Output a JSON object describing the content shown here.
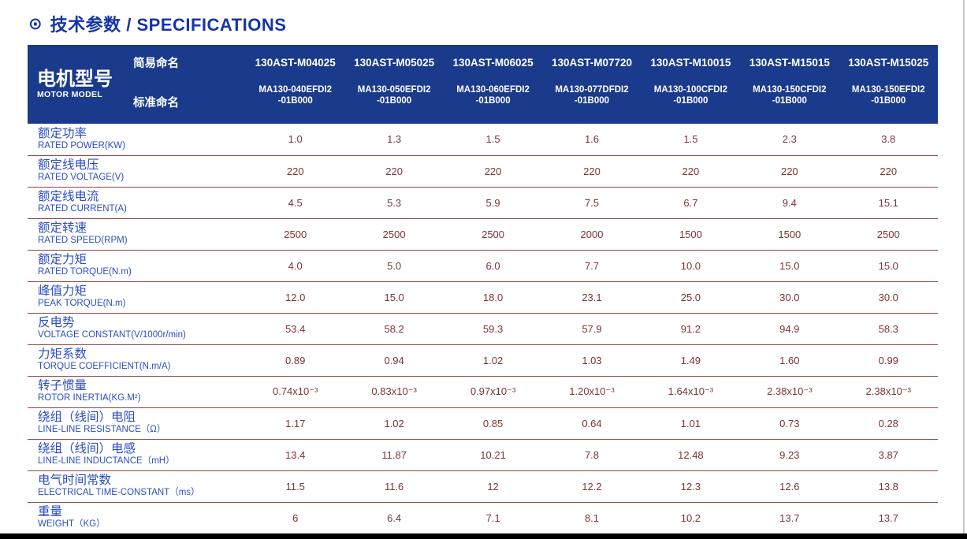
{
  "page": {
    "title_icon": "⊙",
    "title": "技术参数 / SPECIFICATIONS"
  },
  "colors": {
    "title_text": "#1634a6",
    "header_background": "#1a3a8c",
    "header_text": "#ffffff",
    "row_label_text": "#2b4ec2",
    "value_text": "#7c3434",
    "row_divider": "#8d4343",
    "bottom_bar": "#000000"
  },
  "table": {
    "header": {
      "model_label_cn": "电机型号",
      "model_label_en": "MOTOR MODEL",
      "simple_name_label": "简易命名",
      "standard_name_label": "标准命名",
      "columns": [
        {
          "simple": "130AST-M04025",
          "standard_line1": "MA130-040EFDI2",
          "standard_line2": "-01B000"
        },
        {
          "simple": "130AST-M05025",
          "standard_line1": "MA130-050EFDI2",
          "standard_line2": "-01B000"
        },
        {
          "simple": "130AST-M06025",
          "standard_line1": "MA130-060EFDI2",
          "standard_line2": "-01B000"
        },
        {
          "simple": "130AST-M07720",
          "standard_line1": "MA130-077DFDI2",
          "standard_line2": "-01B000"
        },
        {
          "simple": "130AST-M10015",
          "standard_line1": "MA130-100CFDI2",
          "standard_line2": "-01B000"
        },
        {
          "simple": "130AST-M15015",
          "standard_line1": "MA130-150CFDI2",
          "standard_line2": "-01B000"
        },
        {
          "simple": "130AST-M15025",
          "standard_line1": "MA130-150EFDI2",
          "standard_line2": "-01B000"
        }
      ]
    },
    "rows": [
      {
        "label_cn": "额定功率",
        "label_en": "RATED POWER(KW)",
        "values": [
          "1.0",
          "1.3",
          "1.5",
          "1.6",
          "1.5",
          "2.3",
          "3.8"
        ]
      },
      {
        "label_cn": "额定线电压",
        "label_en": "RATED VOLTAGE(V)",
        "values": [
          "220",
          "220",
          "220",
          "220",
          "220",
          "220",
          "220"
        ]
      },
      {
        "label_cn": "额定线电流",
        "label_en": "RATED CURRENT(A)",
        "values": [
          "4.5",
          "5.3",
          "5.9",
          "7.5",
          "6.7",
          "9.4",
          "15.1"
        ]
      },
      {
        "label_cn": "额定转速",
        "label_en": "RATED SPEED(RPM)",
        "values": [
          "2500",
          "2500",
          "2500",
          "2000",
          "1500",
          "1500",
          "2500"
        ]
      },
      {
        "label_cn": "额定力矩",
        "label_en": "RATED TORQUE(N.m)",
        "values": [
          "4.0",
          "5.0",
          "6.0",
          "7.7",
          "10.0",
          "15.0",
          "15.0"
        ]
      },
      {
        "label_cn": "峰值力矩",
        "label_en": "PEAK TORQUE(N.m)",
        "values": [
          "12.0",
          "15.0",
          "18.0",
          "23.1",
          "25.0",
          "30.0",
          "30.0"
        ]
      },
      {
        "label_cn": "反电势",
        "label_en": "VOLTAGE CONSTANT(V/1000r/min)",
        "values": [
          "53.4",
          "58.2",
          "59.3",
          "57.9",
          "91.2",
          "94.9",
          "58.3"
        ]
      },
      {
        "label_cn": "力矩系数",
        "label_en": "TORQUE COEFFICIENT(N.m/A)",
        "values": [
          "0.89",
          "0.94",
          "1.02",
          "1.03",
          "1.49",
          "1.60",
          "0.99"
        ]
      },
      {
        "label_cn": "转子惯量",
        "label_en": "ROTOR INERTIA(KG.M²)",
        "values": [
          "0.74x10⁻³",
          "0.83x10⁻³",
          "0.97x10⁻³",
          "1.20x10⁻³",
          "1.64x10⁻³",
          "2.38x10⁻³",
          "2.38x10⁻³"
        ]
      },
      {
        "label_cn": "绕组（线间）电阻",
        "label_en": "LINE-LINE RESISTANCE（Ω）",
        "values": [
          "1.17",
          "1.02",
          "0.85",
          "0.64",
          "1.01",
          "0.73",
          "0.28"
        ]
      },
      {
        "label_cn": "绕组（线间）电感",
        "label_en": "LINE-LINE INDUCTANCE（mH）",
        "values": [
          "13.4",
          "11.87",
          "10.21",
          "7.8",
          "12.48",
          "9.23",
          "3.87"
        ]
      },
      {
        "label_cn": "电气时间常数",
        "label_en": "ELECTRICAL TIME-CONSTANT（ms）",
        "values": [
          "11.5",
          "11.6",
          "12",
          "12.2",
          "12.3",
          "12.6",
          "13.8"
        ]
      },
      {
        "label_cn": "重量",
        "label_en": "WEIGHT（KG）",
        "values": [
          "6",
          "6.4",
          "7.1",
          "8.1",
          "10.2",
          "13.7",
          "13.7"
        ]
      }
    ]
  }
}
